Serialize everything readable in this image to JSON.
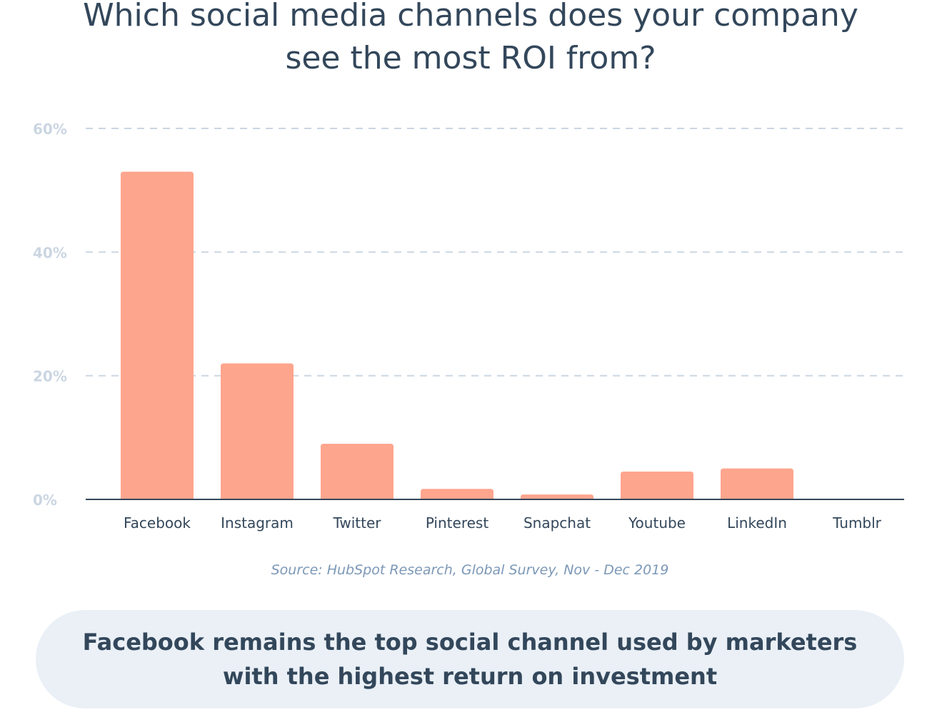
{
  "title": {
    "line1": "Which social media channels does your company",
    "line2": "see the most ROI from?"
  },
  "source": "Source: HubSpot Research, Global Survey, Nov - Dec 2019",
  "callout": {
    "line1": "Facebook remains the top social channel used by marketers",
    "line2": "with the highest return on investment"
  },
  "colors": {
    "bar": "#fea58e",
    "title": "#33475b",
    "tick": "#cbd6e2",
    "grid": "#cbd6e2",
    "axis": "#33475b",
    "source": "#7c98b6",
    "callout_bg": "#eaf0f6"
  },
  "chart_data": {
    "type": "bar",
    "categories": [
      "Facebook",
      "Instagram",
      "Twitter",
      "Pinterest",
      "Snapchat",
      "Youtube",
      "LinkedIn",
      "Tumblr"
    ],
    "values": [
      53,
      22,
      9,
      1.7,
      0.8,
      4.5,
      5,
      0
    ],
    "yticks": [
      "0%",
      "20%",
      "40%",
      "60%"
    ],
    "ytick_values": [
      0,
      20,
      40,
      60
    ],
    "ylim": [
      0,
      60
    ],
    "grid": true,
    "xlabel": "",
    "ylabel": ""
  }
}
